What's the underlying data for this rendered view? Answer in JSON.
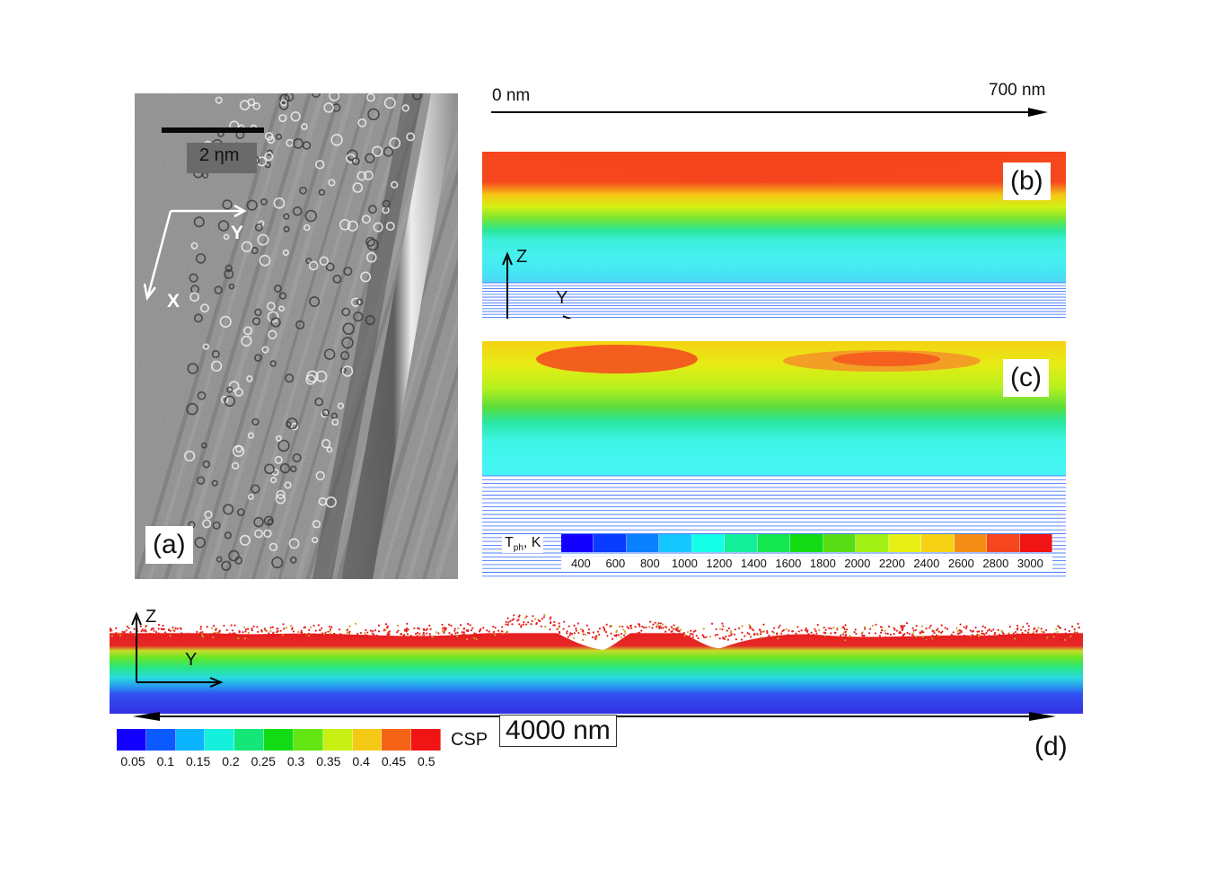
{
  "panel_a": {
    "label": "(a)",
    "scale_bar_text": "2 ηm",
    "axis_x": "X",
    "axis_y": "Y"
  },
  "panel_b": {
    "label": "(b)",
    "axis_z": "Z",
    "axis_y": "Y"
  },
  "panel_c": {
    "label": "(c)"
  },
  "panel_d": {
    "label": "(d)",
    "axis_z": "Z",
    "axis_y": "Y"
  },
  "top_scale": {
    "start": "0 nm",
    "end": "700 nm"
  },
  "bottom_scale": {
    "length": "4000 nm"
  },
  "temperature_legend": {
    "title_main": "T",
    "title_sub": "ph",
    "title_unit": ", K",
    "colors": [
      "#1400ff",
      "#0a3cff",
      "#0a82ff",
      "#14c8ff",
      "#14ffe6",
      "#14f09a",
      "#14e650",
      "#14dc14",
      "#5adc14",
      "#a0f014",
      "#e6f014",
      "#f5d214",
      "#f58c14",
      "#f5461e",
      "#f01414"
    ],
    "ticks": [
      "400",
      "600",
      "800",
      "1000",
      "1200",
      "1400",
      "1600",
      "1800",
      "2000",
      "2200",
      "2400",
      "2600",
      "2800",
      "3000"
    ]
  },
  "csp_legend": {
    "title": "CSP",
    "colors": [
      "#1400ff",
      "#0a5aff",
      "#0ab4ff",
      "#14f0dc",
      "#14e678",
      "#14dc14",
      "#64e614",
      "#c8f014",
      "#f5c814",
      "#f56414",
      "#f01414"
    ],
    "ticks": [
      "0.05",
      "0.1",
      "0.15",
      "0.2",
      "0.25",
      "0.3",
      "0.35",
      "0.4",
      "0.45",
      "0.5"
    ]
  }
}
